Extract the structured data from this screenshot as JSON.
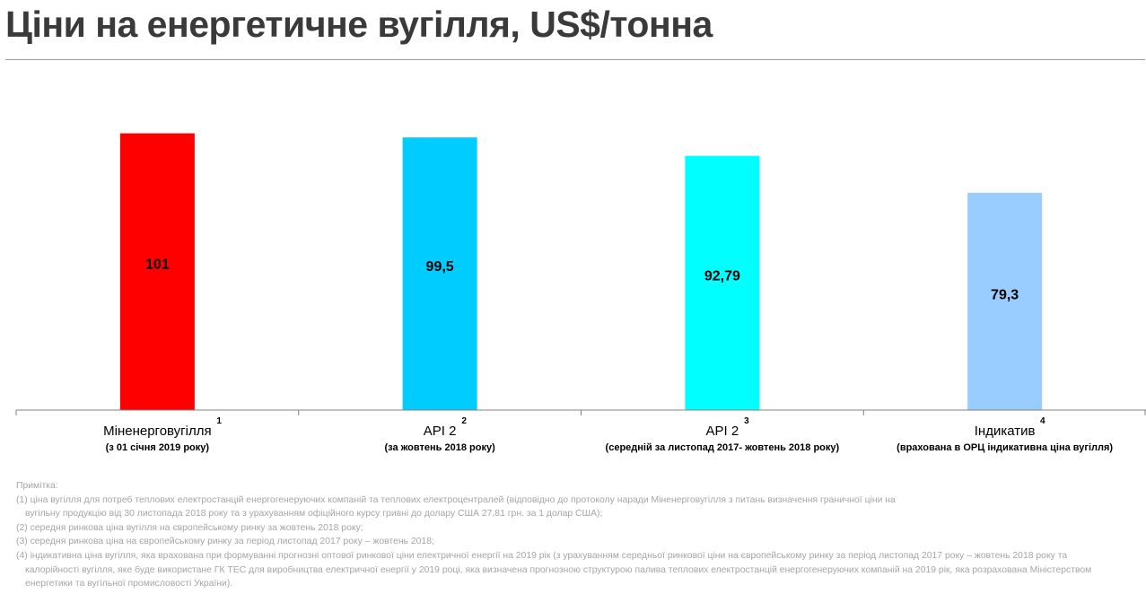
{
  "title": {
    "main": "Ціни на енергетичне вугілля, ",
    "unit": "US$/тонна"
  },
  "chart_data": {
    "type": "bar",
    "ylim": [
      0,
      112
    ],
    "grid": false,
    "legend": "none",
    "bars": [
      {
        "label": "Міненерговугілля",
        "note_ref": "1",
        "sublabel": "(з 01 січня 2019 року)",
        "value": 101,
        "value_label": "101",
        "color": "#ff0000"
      },
      {
        "label": "API 2",
        "note_ref": "2",
        "sublabel": "(за жовтень 2018 року)",
        "value": 99.5,
        "value_label": "99,5",
        "color": "#00ccff"
      },
      {
        "label": "API 2",
        "note_ref": "3",
        "sublabel": "(середній за листопад 2017- жовтень 2018 року)",
        "value": 92.79,
        "value_label": "92,79",
        "color": "#00ffff"
      },
      {
        "label": "Індикатив",
        "note_ref": "4",
        "sublabel": "(врахована в ОРЦ індикативна ціна вугілля)",
        "value": 79.3,
        "value_label": "79,3",
        "color": "#99ccff"
      }
    ]
  },
  "notes": {
    "heading": "Примітка:",
    "lines": [
      "(1) ціна вугілля для потреб теплових електростанцій енергогенеруючих компаній та теплових електроцентралей (відповідно до протоколу наради Міненерговугілля з питань визначення граничної ціни на",
      "вугільну продукцію від 30 листопада 2018 року  та з урахуванням офіційного курсу гривні до долару США 27,81 грн. за 1 долар США);",
      "(2) середня ринкова ціна вугілля на європейському ринку за  жовтень  2018 року;",
      "(3) середня ринкова ціна на європейському ринку за період листопад 2017 року – жовтень 2018;",
      "(4) індикативна ціна вугілля, яка врахована при формуванні прогнозні оптової ринкової ціни електричної енергії на 2019 рік (з урахуванням середньої ринкової ціни на європейському ринку за період листопад 2017 року – жовтень 2018 року та",
      "калорійності вугілля, яке буде використане ГК ТЕС для виробництва електричної енергії у 2019 році, яка визначена прогнозною структурою палива теплових електростанцій енергогенеруючих компаній на 2019 рік, яка розрахована Міністерством",
      "енергетики та вугільної промисловості України)."
    ]
  }
}
